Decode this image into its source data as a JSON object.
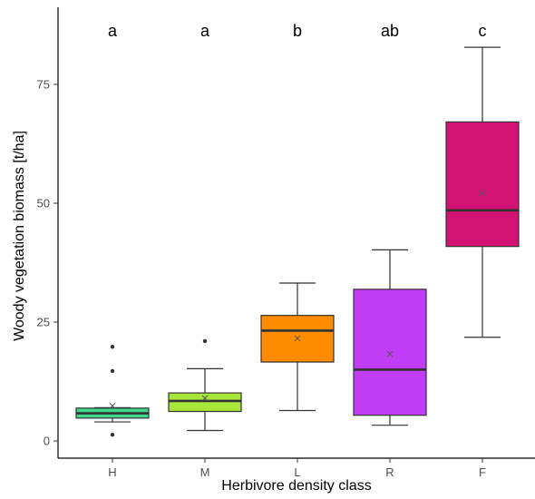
{
  "chart_data": {
    "type": "boxplot",
    "title": "",
    "xlabel": "Herbivore density class",
    "ylabel": "Woody vegetation biomass [t/ha]",
    "ylim": [
      -2,
      91
    ],
    "yticks": [
      0,
      25,
      50,
      75
    ],
    "grid": false,
    "legend": "none",
    "categories": [
      "H",
      "M",
      "L",
      "R",
      "F"
    ],
    "significance_letters": [
      "a",
      "a",
      "b",
      "ab",
      "c"
    ],
    "colors": [
      "#3fd98b",
      "#a8e63a",
      "#ff8c00",
      "#c03cf5",
      "#d21375"
    ],
    "boxes": [
      {
        "category": "H",
        "whisker_low": 4.0,
        "q1": 4.8,
        "median": 5.8,
        "q3": 6.9,
        "whisker_high": 7.0,
        "mean": 7.4,
        "outliers": [
          1.3,
          14.7,
          19.8
        ]
      },
      {
        "category": "M",
        "whisker_low": 2.2,
        "q1": 6.2,
        "median": 8.4,
        "q3": 10.1,
        "whisker_high": 15.2,
        "mean": 9.0,
        "outliers": [
          21.0
        ]
      },
      {
        "category": "L",
        "whisker_low": 6.4,
        "q1": 16.6,
        "median": 23.2,
        "q3": 26.4,
        "whisker_high": 33.2,
        "mean": 21.6,
        "outliers": []
      },
      {
        "category": "R",
        "whisker_low": 3.3,
        "q1": 5.4,
        "median": 15.0,
        "q3": 31.9,
        "whisker_high": 40.2,
        "mean": 18.3,
        "outliers": []
      },
      {
        "category": "F",
        "whisker_low": 21.8,
        "q1": 40.9,
        "median": 48.5,
        "q3": 67.1,
        "whisker_high": 82.8,
        "mean": 52.1,
        "outliers": []
      }
    ]
  }
}
